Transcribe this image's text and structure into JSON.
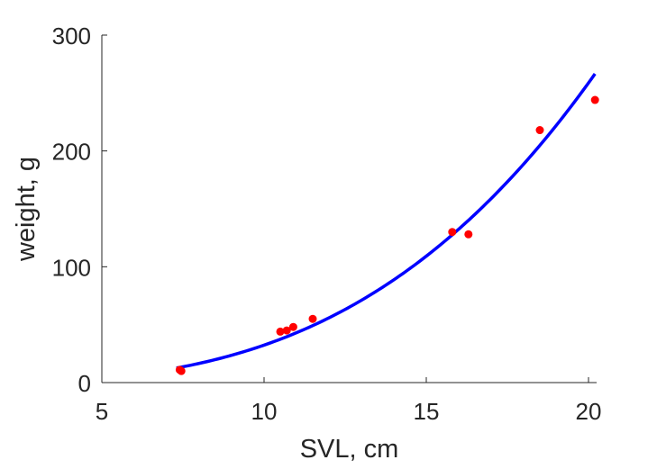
{
  "chart_data": {
    "type": "scatter",
    "title": "",
    "xlabel": "SVL, cm",
    "ylabel": "weight, g",
    "xlim": [
      5,
      20.25
    ],
    "ylim": [
      0,
      300
    ],
    "x_ticks": [
      5,
      10,
      15,
      20
    ],
    "y_ticks": [
      0,
      100,
      200,
      300
    ],
    "x_tick_labels": [
      "5",
      "10",
      "15",
      "20"
    ],
    "y_tick_labels": [
      "0",
      "100",
      "200",
      "300"
    ],
    "grid": false,
    "legend": "none",
    "series": [
      {
        "type": "scatter",
        "color": "#ff0000",
        "points": [
          {
            "x": 7.4,
            "y": 11
          },
          {
            "x": 7.45,
            "y": 10
          },
          {
            "x": 10.5,
            "y": 44
          },
          {
            "x": 10.7,
            "y": 45
          },
          {
            "x": 10.9,
            "y": 48
          },
          {
            "x": 11.5,
            "y": 55
          },
          {
            "x": 15.8,
            "y": 130
          },
          {
            "x": 16.3,
            "y": 128
          },
          {
            "x": 18.5,
            "y": 218
          },
          {
            "x": 20.2,
            "y": 244
          }
        ]
      },
      {
        "type": "line",
        "color": "#0000ff",
        "fit": {
          "coefficient": 0.03234,
          "exponent": 3.0,
          "x_range": [
            7.3,
            20.2
          ]
        }
      }
    ]
  }
}
